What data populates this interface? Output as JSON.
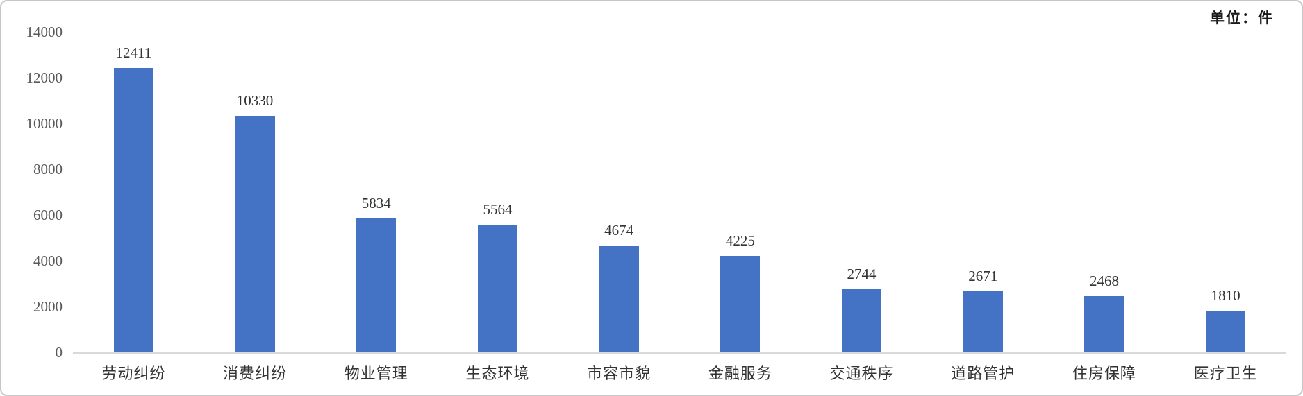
{
  "unit_label": "单位：件",
  "colors": {
    "bar": "#4472C4",
    "axis_line": "#D9D9D9",
    "tick_text": "#595959",
    "value_text": "#333333",
    "category_text": "#333333",
    "card_border": "#C6C6C6"
  },
  "chart_data": {
    "type": "bar",
    "title": "",
    "unit": "单位：件",
    "categories": [
      "劳动纠纷",
      "消费纠纷",
      "物业管理",
      "生态环境",
      "市容市貌",
      "金融服务",
      "交通秩序",
      "道路管护",
      "住房保障",
      "医疗卫生"
    ],
    "values": [
      12411,
      10330,
      5834,
      5564,
      4674,
      4225,
      2744,
      2671,
      2468,
      1810
    ],
    "xlabel": "",
    "ylabel": "",
    "ylim": [
      0,
      14000
    ],
    "yticks": [
      0,
      2000,
      4000,
      6000,
      8000,
      10000,
      12000,
      14000
    ],
    "grid": false,
    "legend": false,
    "data_labels": true,
    "bar_color": "#4472C4"
  }
}
